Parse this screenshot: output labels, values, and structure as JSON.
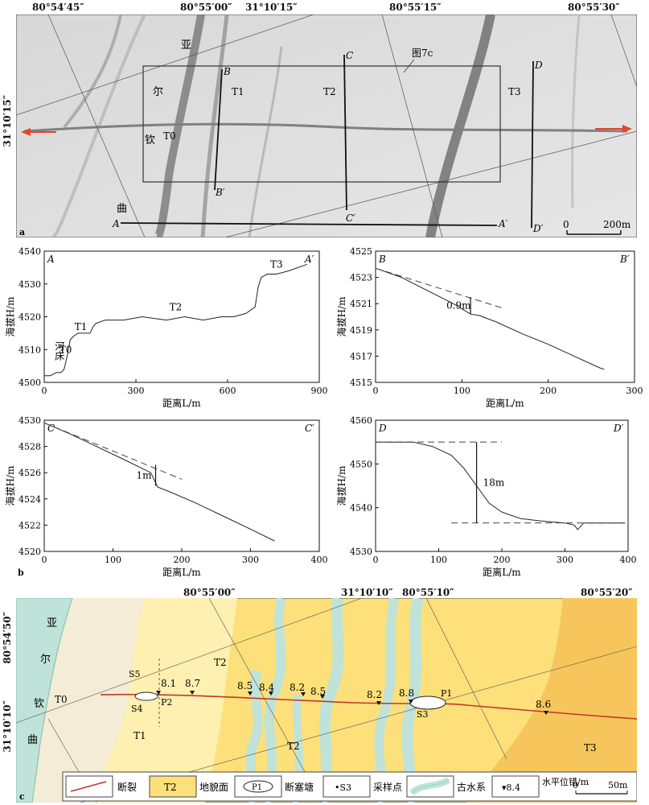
{
  "panel_a": {
    "top_coords": [
      "80°54′45″",
      "80°55′00″",
      "31°10′15″",
      "80°55′15″",
      "80°55′30″"
    ],
    "left_coord": "31°10′15″",
    "river_chars": [
      "亚",
      "尔",
      "钦",
      "曲"
    ],
    "terraces": [
      "T0",
      "T1",
      "T2",
      "T3"
    ],
    "profile_labels": [
      "A",
      "A′",
      "B",
      "B′",
      "C",
      "C′",
      "D",
      "D′"
    ],
    "fig_ref": "图7c",
    "scale": {
      "zero": "0",
      "end": "200m"
    },
    "label": "a"
  },
  "chart_data": [
    {
      "type": "line",
      "name_start": "A",
      "name_end": "A′",
      "xlabel": "距离L/m",
      "ylabel": "海拔H/m",
      "xlim": [
        0,
        900
      ],
      "ylim": [
        4500,
        4540
      ],
      "xticks": [
        0,
        300,
        600,
        900
      ],
      "yticks": [
        4500,
        4510,
        4520,
        4530,
        4540
      ],
      "x": [
        0,
        20,
        40,
        55,
        65,
        75,
        85,
        95,
        110,
        130,
        150,
        160,
        170,
        200,
        260,
        320,
        400,
        460,
        520,
        580,
        620,
        660,
        690,
        700,
        710,
        730,
        760,
        800,
        860
      ],
      "y": [
        4502,
        4502,
        4503,
        4503,
        4504,
        4508,
        4513,
        4514,
        4515,
        4515,
        4515,
        4517,
        4518,
        4519,
        4519,
        4520,
        4519,
        4520,
        4519,
        4520,
        4520,
        4521,
        4523,
        4529,
        4532,
        4533,
        4533,
        4534,
        4536
      ],
      "annotations": [
        "T0",
        "T1",
        "T2",
        "T3",
        "河床"
      ]
    },
    {
      "type": "line",
      "name_start": "B",
      "name_end": "B′",
      "xlabel": "距离L/m",
      "ylabel": "海拔H/m",
      "xlim": [
        0,
        300
      ],
      "ylim": [
        4515,
        4525
      ],
      "xticks": [
        0,
        100,
        200,
        300
      ],
      "yticks": [
        4515,
        4517,
        4519,
        4521,
        4523,
        4525
      ],
      "x": [
        0,
        30,
        60,
        90,
        110,
        120,
        140,
        170,
        200,
        230,
        260,
        265
      ],
      "y": [
        4523.7,
        4523.0,
        4522.0,
        4521.0,
        4520.2,
        4520.1,
        4519.6,
        4518.7,
        4517.9,
        4517.0,
        4516.1,
        4516.0
      ],
      "offset_label": "0.9m"
    },
    {
      "type": "line",
      "name_start": "C",
      "name_end": "C′",
      "xlabel": "距离L/m",
      "ylabel": "海拔H/m",
      "xlim": [
        0,
        400
      ],
      "ylim": [
        4520,
        4530
      ],
      "xticks": [
        0,
        100,
        200,
        300,
        400
      ],
      "yticks": [
        4520,
        4522,
        4524,
        4526,
        4528,
        4530
      ],
      "x": [
        0,
        40,
        80,
        120,
        155,
        165,
        180,
        220,
        260,
        300,
        335
      ],
      "y": [
        4529.8,
        4528.9,
        4527.9,
        4526.9,
        4526.0,
        4524.9,
        4524.6,
        4523.7,
        4522.7,
        4521.7,
        4520.8
      ],
      "offset_label": "1m"
    },
    {
      "type": "line",
      "name_start": "D",
      "name_end": "D′",
      "xlabel": "距离L/m",
      "ylabel": "海拔H/m",
      "xlim": [
        0,
        400
      ],
      "ylim": [
        4530,
        4560
      ],
      "xticks": [
        0,
        100,
        200,
        300,
        400
      ],
      "yticks": [
        4530,
        4540,
        4550,
        4560
      ],
      "x": [
        0,
        60,
        90,
        120,
        140,
        160,
        180,
        200,
        230,
        260,
        300,
        315,
        320,
        330,
        360,
        395
      ],
      "y": [
        4555,
        4555,
        4554,
        4552,
        4549,
        4545,
        4541,
        4539,
        4537.5,
        4537,
        4536.5,
        4536,
        4535,
        4536.5,
        4536.5,
        4536.5
      ],
      "offset_label": "18m"
    }
  ],
  "panel_b_label": "b",
  "panel_c": {
    "top_coords": [
      "80°55′00″",
      "31°10′10″",
      "80°55′10″",
      "80°55′20″"
    ],
    "left_coords": [
      "80°54′50″",
      "31°10′10″"
    ],
    "river_chars": [
      "亚",
      "尔",
      "钦",
      "曲"
    ],
    "terraces": [
      "T0",
      "T1",
      "T2",
      "T2",
      "T3"
    ],
    "offsets": [
      "8.1",
      "8.7",
      "8.5",
      "8.4",
      "8.2",
      "8.5",
      "8.2",
      "8.8",
      "8.6"
    ],
    "ponds": [
      "P2",
      "P1"
    ],
    "samples": [
      "S5",
      "S4",
      "S3"
    ],
    "label": "c"
  },
  "legend": {
    "fault": "断裂",
    "terrace_box": "T2",
    "terrace": "地貌面",
    "pond_symbol": "P1",
    "pond": "断塞塘",
    "sample_symbol": "•S3",
    "sample": "采样点",
    "paleo": "古水系",
    "offset_symbol": "▾8.4",
    "offset": "水平位错/m",
    "scale_zero": "0",
    "scale_end": "50m"
  },
  "colors": {
    "fault": "#c0392b",
    "T2": "#fde07a",
    "T1": "#fdf0b0",
    "T0": "#f4ecd6",
    "T3": "#f6c65c",
    "river": "#bfe3d8"
  }
}
